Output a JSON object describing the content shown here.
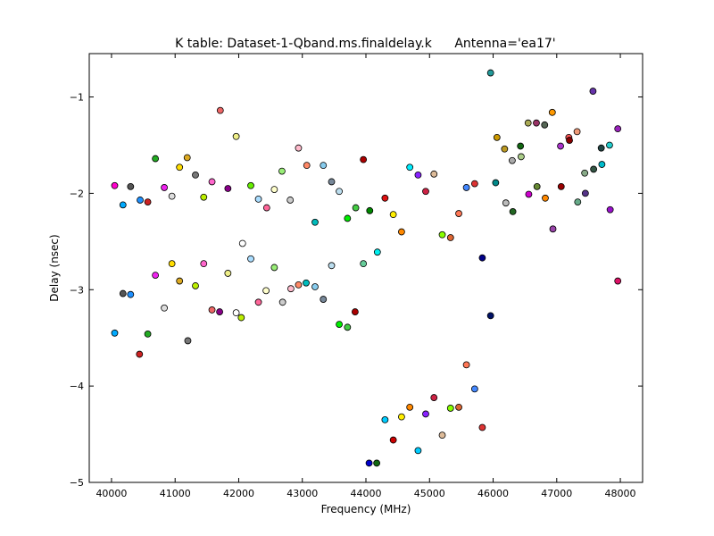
{
  "window": {
    "width": 800,
    "height": 600
  },
  "chart_data": {
    "type": "scatter",
    "title": "K table: Dataset-1-Qband.ms.finaldelay.k",
    "subtitle": "Antenna='ea17'",
    "xlabel": "Frequency (MHz)",
    "ylabel": "Delay (nsec)",
    "xlim": [
      39650,
      48350
    ],
    "ylim": [
      -5,
      -0.55
    ],
    "xticks": [
      40000,
      41000,
      42000,
      43000,
      44000,
      45000,
      46000,
      47000,
      48000
    ],
    "xtick_labels": [
      "40000",
      "41000",
      "42000",
      "43000",
      "44000",
      "45000",
      "46000",
      "47000",
      "48000"
    ],
    "yticks": [
      -5,
      -4,
      -3,
      -2,
      -1
    ],
    "ytick_labels": [
      "−5",
      "−4",
      "−3",
      "−2",
      "−1"
    ],
    "grid": false,
    "points": [
      {
        "x": 40050,
        "y": -1.92,
        "color": "#ff00cc"
      },
      {
        "x": 40180,
        "y": -2.12,
        "color": "#00aaff"
      },
      {
        "x": 40300,
        "y": -1.93,
        "color": "#555555"
      },
      {
        "x": 40450,
        "y": -2.07,
        "color": "#1e90ff"
      },
      {
        "x": 40570,
        "y": -2.09,
        "color": "#cc2222"
      },
      {
        "x": 40690,
        "y": -1.64,
        "color": "#22aa22"
      },
      {
        "x": 40830,
        "y": -1.94,
        "color": "#ee22ee"
      },
      {
        "x": 40950,
        "y": -2.03,
        "color": "#dddddd"
      },
      {
        "x": 41070,
        "y": -1.73,
        "color": "#ffdd00"
      },
      {
        "x": 41190,
        "y": -1.63,
        "color": "#ddaa22"
      },
      {
        "x": 41320,
        "y": -1.81,
        "color": "#777777"
      },
      {
        "x": 41450,
        "y": -2.04,
        "color": "#bbee00"
      },
      {
        "x": 41580,
        "y": -1.88,
        "color": "#ff66cc"
      },
      {
        "x": 41710,
        "y": -1.14,
        "color": "#ee6666"
      },
      {
        "x": 41830,
        "y": -1.95,
        "color": "#880088"
      },
      {
        "x": 41960,
        "y": -1.41,
        "color": "#eeee88"
      },
      {
        "x": 42190,
        "y": -1.92,
        "color": "#66ee00"
      },
      {
        "x": 42310,
        "y": -2.06,
        "color": "#aaddff"
      },
      {
        "x": 42440,
        "y": -2.15,
        "color": "#ff6699"
      },
      {
        "x": 42560,
        "y": -1.96,
        "color": "#ffffcc"
      },
      {
        "x": 42680,
        "y": -1.77,
        "color": "#99ee77"
      },
      {
        "x": 42810,
        "y": -2.07,
        "color": "#cccccc"
      },
      {
        "x": 42940,
        "y": -1.53,
        "color": "#ffbbcc"
      },
      {
        "x": 43070,
        "y": -1.71,
        "color": "#ff8866"
      },
      {
        "x": 43200,
        "y": -2.3,
        "color": "#00bbbb"
      },
      {
        "x": 43330,
        "y": -1.71,
        "color": "#88ccee"
      },
      {
        "x": 43460,
        "y": -1.88,
        "color": "#778899"
      },
      {
        "x": 43580,
        "y": -1.98,
        "color": "#bbddee"
      },
      {
        "x": 43710,
        "y": -2.26,
        "color": "#00ee00"
      },
      {
        "x": 43840,
        "y": -2.15,
        "color": "#44cc44"
      },
      {
        "x": 43960,
        "y": -1.65,
        "color": "#aa0000"
      },
      {
        "x": 44060,
        "y": -2.18,
        "color": "#008800"
      },
      {
        "x": 44300,
        "y": -2.05,
        "color": "#dd1111"
      },
      {
        "x": 44430,
        "y": -2.22,
        "color": "#ffee00"
      },
      {
        "x": 44560,
        "y": -2.4,
        "color": "#ff8800"
      },
      {
        "x": 44690,
        "y": -1.73,
        "color": "#00eeff"
      },
      {
        "x": 44820,
        "y": -1.81,
        "color": "#8822ff"
      },
      {
        "x": 44940,
        "y": -1.98,
        "color": "#cc2244"
      },
      {
        "x": 45070,
        "y": -1.8,
        "color": "#ddbb99"
      },
      {
        "x": 45200,
        "y": -2.43,
        "color": "#88ff00"
      },
      {
        "x": 45330,
        "y": -2.46,
        "color": "#dd6633"
      },
      {
        "x": 45460,
        "y": -2.21,
        "color": "#ff7755"
      },
      {
        "x": 45580,
        "y": -1.94,
        "color": "#4488ff"
      },
      {
        "x": 45710,
        "y": -1.9,
        "color": "#dd3333"
      },
      {
        "x": 45960,
        "y": -0.75,
        "color": "#229999"
      },
      {
        "x": 46040,
        "y": -1.89,
        "color": "#008888"
      },
      {
        "x": 46060,
        "y": -1.42,
        "color": "#cc9900"
      },
      {
        "x": 46180,
        "y": -1.54,
        "color": "#bb9922"
      },
      {
        "x": 46200,
        "y": -2.1,
        "color": "#bbbbbb"
      },
      {
        "x": 46300,
        "y": -1.66,
        "color": "#aaaaaa"
      },
      {
        "x": 46310,
        "y": -2.19,
        "color": "#226622"
      },
      {
        "x": 46430,
        "y": -1.51,
        "color": "#116611"
      },
      {
        "x": 46440,
        "y": -1.62,
        "color": "#aacc88"
      },
      {
        "x": 46550,
        "y": -1.27,
        "color": "#aaaa55"
      },
      {
        "x": 46560,
        "y": -2.01,
        "color": "#cc00cc"
      },
      {
        "x": 46680,
        "y": -1.27,
        "color": "#993366"
      },
      {
        "x": 46690,
        "y": -1.93,
        "color": "#668833"
      },
      {
        "x": 46810,
        "y": -1.29,
        "color": "#556655"
      },
      {
        "x": 46820,
        "y": -2.05,
        "color": "#ff8800"
      },
      {
        "x": 46930,
        "y": -1.16,
        "color": "#ff9900"
      },
      {
        "x": 46940,
        "y": -2.37,
        "color": "#9944aa"
      },
      {
        "x": 47060,
        "y": -1.51,
        "color": "#aa33cc"
      },
      {
        "x": 47070,
        "y": -1.93,
        "color": "#990000"
      },
      {
        "x": 47190,
        "y": -1.42,
        "color": "#ff5555"
      },
      {
        "x": 47200,
        "y": -1.45,
        "color": "#880000"
      },
      {
        "x": 47320,
        "y": -1.36,
        "color": "#ee9977"
      },
      {
        "x": 47330,
        "y": -2.09,
        "color": "#66aa88"
      },
      {
        "x": 47440,
        "y": -1.79,
        "color": "#88aa88"
      },
      {
        "x": 47450,
        "y": -2.0,
        "color": "#553388"
      },
      {
        "x": 47570,
        "y": -0.94,
        "color": "#6633aa"
      },
      {
        "x": 47580,
        "y": -1.75,
        "color": "#335544"
      },
      {
        "x": 47700,
        "y": -1.53,
        "color": "#224444"
      },
      {
        "x": 47710,
        "y": -1.7,
        "color": "#00bbcc"
      },
      {
        "x": 47830,
        "y": -1.5,
        "color": "#22cccc"
      },
      {
        "x": 47840,
        "y": -2.17,
        "color": "#9911cc"
      },
      {
        "x": 47960,
        "y": -1.33,
        "color": "#9922bb"
      },
      {
        "x": 47960,
        "y": -2.91,
        "color": "#dd1166"
      },
      {
        "x": 40050,
        "y": -3.45,
        "color": "#00aaff"
      },
      {
        "x": 40180,
        "y": -3.04,
        "color": "#555555"
      },
      {
        "x": 40300,
        "y": -3.05,
        "color": "#1e90ff"
      },
      {
        "x": 40440,
        "y": -3.67,
        "color": "#cc2222"
      },
      {
        "x": 40570,
        "y": -3.46,
        "color": "#22aa22"
      },
      {
        "x": 40690,
        "y": -2.85,
        "color": "#ee22ee"
      },
      {
        "x": 40830,
        "y": -3.19,
        "color": "#dddddd"
      },
      {
        "x": 40950,
        "y": -2.73,
        "color": "#ffdd00"
      },
      {
        "x": 41070,
        "y": -2.91,
        "color": "#ddaa22"
      },
      {
        "x": 41200,
        "y": -3.53,
        "color": "#777777"
      },
      {
        "x": 41320,
        "y": -2.96,
        "color": "#bbee00"
      },
      {
        "x": 41450,
        "y": -2.73,
        "color": "#ff66cc"
      },
      {
        "x": 41580,
        "y": -3.21,
        "color": "#ee6666"
      },
      {
        "x": 41700,
        "y": -3.23,
        "color": "#880088"
      },
      {
        "x": 41830,
        "y": -2.83,
        "color": "#eeee88"
      },
      {
        "x": 41960,
        "y": -3.24,
        "color": "#ffffff"
      },
      {
        "x": 42040,
        "y": -3.29,
        "color": "#bbee00"
      },
      {
        "x": 42060,
        "y": -2.52,
        "color": "#ffffff"
      },
      {
        "x": 42190,
        "y": -2.68,
        "color": "#aaddff"
      },
      {
        "x": 42310,
        "y": -3.13,
        "color": "#ff6699"
      },
      {
        "x": 42430,
        "y": -3.01,
        "color": "#ffffcc"
      },
      {
        "x": 42560,
        "y": -2.77,
        "color": "#99ee77"
      },
      {
        "x": 42690,
        "y": -3.13,
        "color": "#cccccc"
      },
      {
        "x": 42820,
        "y": -2.99,
        "color": "#ffbbcc"
      },
      {
        "x": 42940,
        "y": -2.95,
        "color": "#ff8866"
      },
      {
        "x": 43060,
        "y": -2.93,
        "color": "#00bbbb"
      },
      {
        "x": 43200,
        "y": -2.97,
        "color": "#88ccee"
      },
      {
        "x": 43330,
        "y": -3.1,
        "color": "#778899"
      },
      {
        "x": 43460,
        "y": -2.75,
        "color": "#bbddee"
      },
      {
        "x": 43580,
        "y": -3.36,
        "color": "#00ee00"
      },
      {
        "x": 43710,
        "y": -3.39,
        "color": "#44cc44"
      },
      {
        "x": 43830,
        "y": -3.23,
        "color": "#aa0000"
      },
      {
        "x": 43960,
        "y": -2.73,
        "color": "#66cc99"
      },
      {
        "x": 44180,
        "y": -2.61,
        "color": "#00eeee"
      },
      {
        "x": 44050,
        "y": -4.8,
        "color": "#0000cc"
      },
      {
        "x": 44170,
        "y": -4.8,
        "color": "#116611"
      },
      {
        "x": 44300,
        "y": -4.35,
        "color": "#00ccff"
      },
      {
        "x": 44430,
        "y": -4.56,
        "color": "#cc0000"
      },
      {
        "x": 44560,
        "y": -4.32,
        "color": "#ffee00"
      },
      {
        "x": 44690,
        "y": -4.22,
        "color": "#ff8800"
      },
      {
        "x": 44820,
        "y": -4.67,
        "color": "#00ccff"
      },
      {
        "x": 44940,
        "y": -4.29,
        "color": "#8822ff"
      },
      {
        "x": 45070,
        "y": -4.12,
        "color": "#cc2244"
      },
      {
        "x": 45200,
        "y": -4.51,
        "color": "#ddbb99"
      },
      {
        "x": 45330,
        "y": -4.23,
        "color": "#88ff00"
      },
      {
        "x": 45460,
        "y": -4.22,
        "color": "#dd6633"
      },
      {
        "x": 45580,
        "y": -3.78,
        "color": "#ff7755"
      },
      {
        "x": 45710,
        "y": -4.03,
        "color": "#4488ff"
      },
      {
        "x": 45830,
        "y": -4.43,
        "color": "#dd3333"
      },
      {
        "x": 45830,
        "y": -2.67,
        "color": "#000088"
      },
      {
        "x": 45960,
        "y": -3.27,
        "color": "#001166"
      }
    ]
  }
}
